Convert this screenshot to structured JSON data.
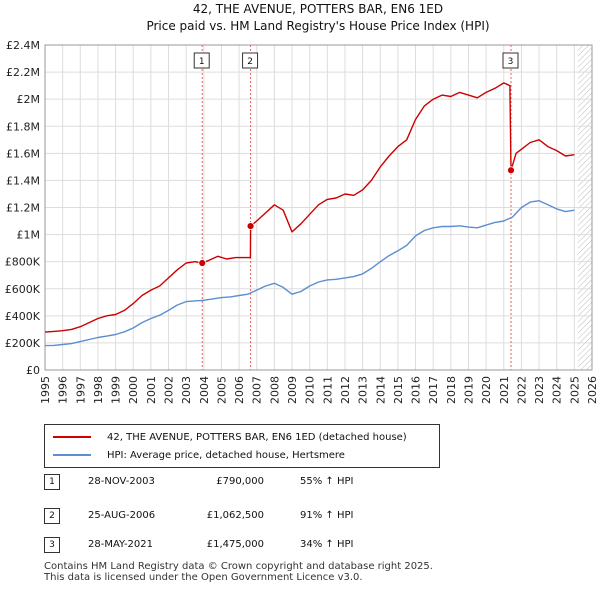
{
  "chart_data": {
    "type": "line",
    "title": "42, THE AVENUE, POTTERS BAR, EN6 1ED",
    "subtitle": "Price paid vs. HM Land Registry's House Price Index (HPI)",
    "xlabel": "",
    "ylabel": "",
    "xlim": [
      1995,
      2026
    ],
    "ylim": [
      0,
      2400000
    ],
    "x_ticks": [
      "1995",
      "1996",
      "1997",
      "1998",
      "1999",
      "2000",
      "2001",
      "2002",
      "2003",
      "2004",
      "2005",
      "2006",
      "2007",
      "2008",
      "2009",
      "2010",
      "2011",
      "2012",
      "2013",
      "2014",
      "2015",
      "2016",
      "2017",
      "2018",
      "2019",
      "2020",
      "2021",
      "2022",
      "2023",
      "2024",
      "2025",
      "2026"
    ],
    "y_ticks": [
      {
        "value": 0,
        "label": "£0"
      },
      {
        "value": 200000,
        "label": "£200K"
      },
      {
        "value": 400000,
        "label": "£400K"
      },
      {
        "value": 600000,
        "label": "£600K"
      },
      {
        "value": 800000,
        "label": "£800K"
      },
      {
        "value": 1000000,
        "label": "£1M"
      },
      {
        "value": 1200000,
        "label": "£1.2M"
      },
      {
        "value": 1400000,
        "label": "£1.4M"
      },
      {
        "value": 1600000,
        "label": "£1.6M"
      },
      {
        "value": 1800000,
        "label": "£1.8M"
      },
      {
        "value": 2000000,
        "label": "£2M"
      },
      {
        "value": 2200000,
        "label": "£2.2M"
      },
      {
        "value": 2400000,
        "label": "£2.4M"
      }
    ],
    "grid": true,
    "hatched_from": 2025.2,
    "series": [
      {
        "name": "42, THE AVENUE, POTTERS BAR, EN6 1ED (detached house)",
        "color": "#cc0000",
        "points": [
          [
            1995.0,
            280000
          ],
          [
            1995.5,
            285000
          ],
          [
            1996.0,
            290000
          ],
          [
            1996.5,
            300000
          ],
          [
            1997.0,
            320000
          ],
          [
            1997.5,
            350000
          ],
          [
            1998.0,
            380000
          ],
          [
            1998.5,
            400000
          ],
          [
            1999.0,
            410000
          ],
          [
            1999.5,
            440000
          ],
          [
            2000.0,
            490000
          ],
          [
            2000.5,
            550000
          ],
          [
            2001.0,
            590000
          ],
          [
            2001.5,
            620000
          ],
          [
            2002.0,
            680000
          ],
          [
            2002.5,
            740000
          ],
          [
            2003.0,
            790000
          ],
          [
            2003.5,
            800000
          ],
          [
            2003.91,
            790000
          ],
          [
            2004.3,
            810000
          ],
          [
            2004.8,
            840000
          ],
          [
            2005.3,
            820000
          ],
          [
            2005.8,
            830000
          ],
          [
            2006.3,
            830000
          ],
          [
            2006.64,
            830000
          ],
          [
            2006.65,
            1062500
          ],
          [
            2007.0,
            1100000
          ],
          [
            2007.5,
            1160000
          ],
          [
            2008.0,
            1220000
          ],
          [
            2008.5,
            1180000
          ],
          [
            2009.0,
            1020000
          ],
          [
            2009.5,
            1080000
          ],
          [
            2010.0,
            1150000
          ],
          [
            2010.5,
            1220000
          ],
          [
            2011.0,
            1260000
          ],
          [
            2011.5,
            1270000
          ],
          [
            2012.0,
            1300000
          ],
          [
            2012.5,
            1290000
          ],
          [
            2013.0,
            1330000
          ],
          [
            2013.5,
            1400000
          ],
          [
            2014.0,
            1500000
          ],
          [
            2014.5,
            1580000
          ],
          [
            2015.0,
            1650000
          ],
          [
            2015.5,
            1700000
          ],
          [
            2016.0,
            1850000
          ],
          [
            2016.5,
            1950000
          ],
          [
            2017.0,
            2000000
          ],
          [
            2017.5,
            2030000
          ],
          [
            2018.0,
            2020000
          ],
          [
            2018.5,
            2050000
          ],
          [
            2019.0,
            2030000
          ],
          [
            2019.5,
            2010000
          ],
          [
            2020.0,
            2050000
          ],
          [
            2020.5,
            2080000
          ],
          [
            2021.0,
            2120000
          ],
          [
            2021.35,
            2100000
          ],
          [
            2021.41,
            1475000
          ],
          [
            2021.7,
            1600000
          ],
          [
            2022.0,
            1630000
          ],
          [
            2022.5,
            1680000
          ],
          [
            2023.0,
            1700000
          ],
          [
            2023.5,
            1650000
          ],
          [
            2024.0,
            1620000
          ],
          [
            2024.5,
            1580000
          ],
          [
            2025.0,
            1590000
          ]
        ]
      },
      {
        "name": "HPI: Average price, detached house, Hertsmere",
        "color": "#5b8fd1",
        "points": [
          [
            1995.0,
            180000
          ],
          [
            1995.5,
            182000
          ],
          [
            1996.0,
            188000
          ],
          [
            1996.5,
            195000
          ],
          [
            1997.0,
            210000
          ],
          [
            1997.5,
            225000
          ],
          [
            1998.0,
            240000
          ],
          [
            1998.5,
            250000
          ],
          [
            1999.0,
            262000
          ],
          [
            1999.5,
            282000
          ],
          [
            2000.0,
            310000
          ],
          [
            2000.5,
            350000
          ],
          [
            2001.0,
            380000
          ],
          [
            2001.5,
            405000
          ],
          [
            2002.0,
            440000
          ],
          [
            2002.5,
            480000
          ],
          [
            2003.0,
            505000
          ],
          [
            2003.5,
            510000
          ],
          [
            2004.0,
            515000
          ],
          [
            2004.5,
            525000
          ],
          [
            2005.0,
            535000
          ],
          [
            2005.5,
            540000
          ],
          [
            2006.0,
            550000
          ],
          [
            2006.5,
            560000
          ],
          [
            2007.0,
            590000
          ],
          [
            2007.5,
            620000
          ],
          [
            2008.0,
            640000
          ],
          [
            2008.5,
            610000
          ],
          [
            2009.0,
            560000
          ],
          [
            2009.5,
            580000
          ],
          [
            2010.0,
            620000
          ],
          [
            2010.5,
            650000
          ],
          [
            2011.0,
            665000
          ],
          [
            2011.5,
            670000
          ],
          [
            2012.0,
            680000
          ],
          [
            2012.5,
            690000
          ],
          [
            2013.0,
            710000
          ],
          [
            2013.5,
            750000
          ],
          [
            2014.0,
            800000
          ],
          [
            2014.5,
            845000
          ],
          [
            2015.0,
            880000
          ],
          [
            2015.5,
            920000
          ],
          [
            2016.0,
            990000
          ],
          [
            2016.5,
            1030000
          ],
          [
            2017.0,
            1050000
          ],
          [
            2017.5,
            1060000
          ],
          [
            2018.0,
            1060000
          ],
          [
            2018.5,
            1065000
          ],
          [
            2019.0,
            1055000
          ],
          [
            2019.5,
            1050000
          ],
          [
            2020.0,
            1070000
          ],
          [
            2020.5,
            1090000
          ],
          [
            2021.0,
            1100000
          ],
          [
            2021.5,
            1130000
          ],
          [
            2022.0,
            1200000
          ],
          [
            2022.5,
            1240000
          ],
          [
            2023.0,
            1250000
          ],
          [
            2023.5,
            1220000
          ],
          [
            2024.0,
            1190000
          ],
          [
            2024.5,
            1170000
          ],
          [
            2025.0,
            1180000
          ]
        ]
      }
    ],
    "sales": [
      {
        "id": "1",
        "x": 2003.91,
        "price": 790000
      },
      {
        "id": "2",
        "x": 2006.65,
        "price": 1062500
      },
      {
        "id": "3",
        "x": 2021.41,
        "price": 1475000
      }
    ]
  },
  "legend": {
    "property": "42, THE AVENUE, POTTERS BAR, EN6 1ED (detached house)",
    "hpi": "HPI: Average price, detached house, Hertsmere"
  },
  "sales_table": [
    {
      "id": "1",
      "date": "28-NOV-2003",
      "price": "£790,000",
      "hpi": "55% ↑ HPI"
    },
    {
      "id": "2",
      "date": "25-AUG-2006",
      "price": "£1,062,500",
      "hpi": "91% ↑ HPI"
    },
    {
      "id": "3",
      "date": "28-MAY-2021",
      "price": "£1,475,000",
      "hpi": "34% ↑ HPI"
    }
  ],
  "footer": {
    "line1": "Contains HM Land Registry data © Crown copyright and database right 2025.",
    "line2": "This data is licensed under the Open Government Licence v3.0."
  }
}
